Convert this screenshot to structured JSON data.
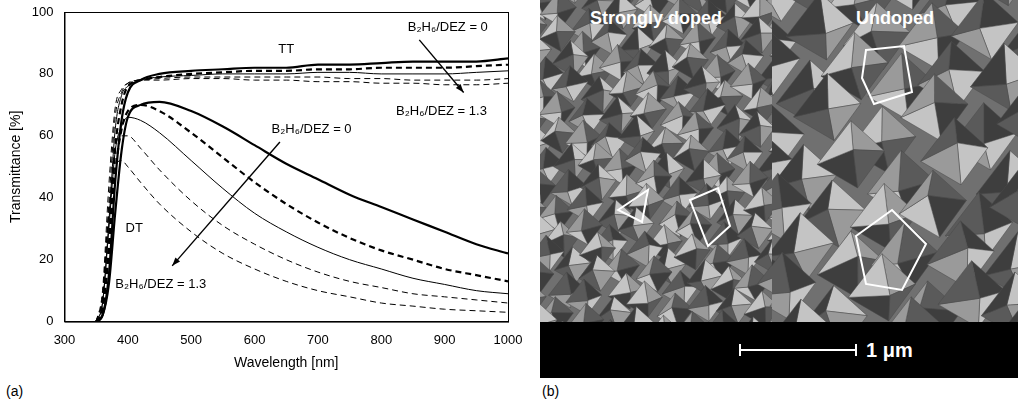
{
  "chart_data": {
    "type": "line",
    "x_label": "Wavelength [nm]",
    "y_label": "Transmittance [%]",
    "x": [
      350,
      360,
      370,
      380,
      390,
      400,
      420,
      450,
      500,
      550,
      600,
      650,
      700,
      750,
      800,
      850,
      900,
      950,
      1000
    ],
    "series": [
      {
        "color": "#000000",
        "line_style": "solid",
        "values": [
          0,
          2,
          15,
          45,
          65,
          74,
          78,
          80,
          81,
          81.5,
          82,
          82,
          83,
          83,
          83.5,
          84,
          84,
          84,
          85
        ]
      },
      {
        "color": "#000000",
        "line_style": "dashed",
        "values": [
          0,
          4,
          25,
          56,
          70,
          76,
          78,
          79,
          80,
          80.5,
          81,
          81,
          81.5,
          81.5,
          82,
          82,
          82,
          82.5,
          83
        ]
      },
      {
        "color": "#000000",
        "line_style": "solid",
        "values": [
          0,
          6,
          32,
          62,
          73,
          76,
          78,
          79,
          79.5,
          80,
          80,
          80,
          80.5,
          80.5,
          80,
          80,
          80,
          80.5,
          81
        ]
      },
      {
        "color": "#000000",
        "line_style": "dashed",
        "values": [
          0,
          8,
          38,
          66,
          74,
          77,
          78,
          78.5,
          79,
          79,
          79,
          79,
          79,
          78.5,
          78.5,
          78,
          78,
          78,
          78.5
        ]
      },
      {
        "color": "#000000",
        "line_style": "dashed",
        "values": [
          0,
          10,
          44,
          69,
          75,
          77,
          78,
          78,
          78.5,
          78.5,
          78,
          78,
          77.5,
          77.5,
          77,
          77,
          76.5,
          76.5,
          77
        ]
      },
      {
        "color": "#000000",
        "line_style": "solid",
        "values": [
          0,
          2,
          12,
          35,
          55,
          66,
          70,
          71,
          68,
          63,
          57,
          51,
          46,
          41,
          37,
          33,
          29,
          25,
          22
        ]
      },
      {
        "color": "#000000",
        "line_style": "dashed",
        "values": [
          0,
          4,
          22,
          48,
          62,
          68,
          70,
          68,
          61,
          53,
          45,
          38,
          32,
          27,
          23,
          20,
          17,
          15,
          13
        ]
      },
      {
        "color": "#000000",
        "line_style": "solid",
        "values": [
          0,
          6,
          30,
          55,
          63,
          66,
          65,
          61,
          52,
          43,
          35,
          29,
          24,
          20,
          17,
          14,
          12,
          10,
          9
        ]
      },
      {
        "color": "#000000",
        "line_style": "dashed",
        "values": [
          0,
          8,
          35,
          56,
          60,
          60,
          56,
          49,
          39,
          31,
          25,
          20,
          16,
          13,
          11,
          9,
          8,
          7,
          6
        ]
      },
      {
        "color": "#000000",
        "line_style": "dashed",
        "values": [
          0,
          8,
          35,
          50,
          52,
          50,
          45,
          38,
          29,
          22,
          17,
          13,
          10,
          8,
          6,
          5,
          4,
          3.5,
          3
        ]
      }
    ],
    "xlim": [
      300,
      1000
    ],
    "xticks": [
      300,
      400,
      500,
      600,
      700,
      800,
      900,
      1000
    ],
    "ylim": [
      0,
      100
    ],
    "yticks": [
      0,
      20,
      40,
      60,
      80,
      100
    ],
    "grid": false,
    "annotations": [
      {
        "text": "TT",
        "x": 650,
        "y": 88
      },
      {
        "text": "B₂H₆/DEZ = 0",
        "x": 905,
        "y": 95
      },
      {
        "text": "B₂H₆/DEZ = 1.3",
        "x": 895,
        "y": 68
      },
      {
        "text": "DT",
        "x": 410,
        "y": 30
      },
      {
        "text": "B₂H₆/DEZ = 0",
        "x": 690,
        "y": 62
      },
      {
        "text": "B₂H₆/DEZ = 1.3",
        "x": 452,
        "y": 12
      }
    ],
    "arrows": [
      {
        "from": [
          860,
          91
        ],
        "to": [
          930,
          74
        ]
      },
      {
        "from": [
          640,
          58
        ],
        "to": [
          470,
          18
        ]
      }
    ]
  },
  "panel_labels": [
    "(a)",
    "(b)"
  ],
  "image": {
    "labels": [
      "Strongly doped",
      "Undoped"
    ],
    "scale_bar": "1 μm"
  }
}
